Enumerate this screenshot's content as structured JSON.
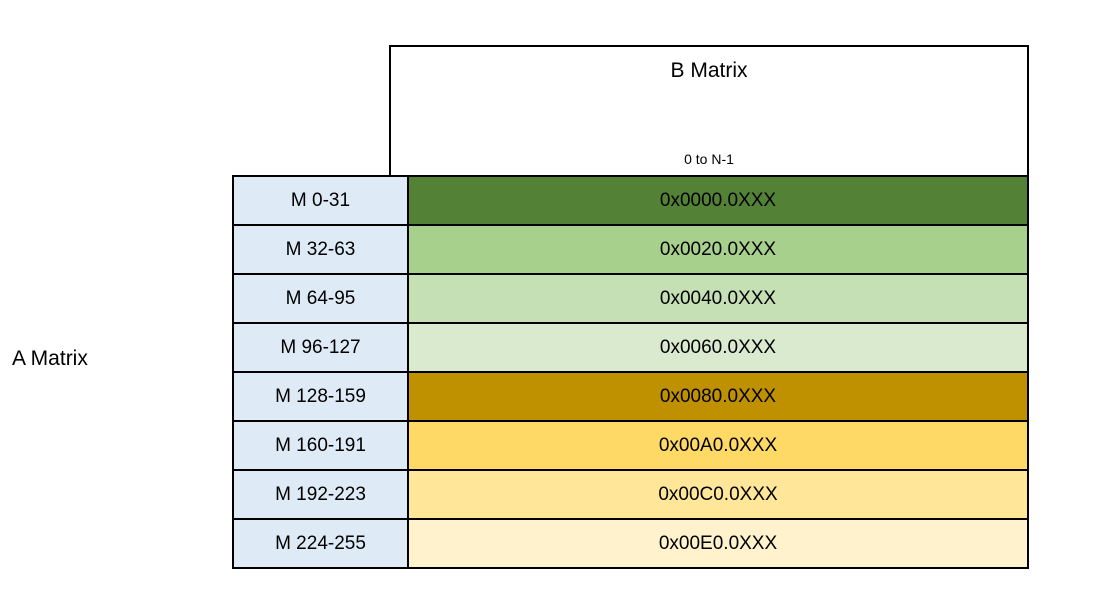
{
  "b_matrix_box": {
    "title": "B Matrix",
    "subtitle": "0 to N-1"
  },
  "a_matrix_label": "A Matrix",
  "colors": {
    "label_cell_bg": "#DEEAF6",
    "border": "#000000",
    "background": "#FFFFFF"
  },
  "table": {
    "rows": [
      {
        "label": "M 0-31",
        "address": "0x0000.0XXX",
        "color": "#538135"
      },
      {
        "label": "M 32-63",
        "address": "0x0020.0XXX",
        "color": "#A8D08D"
      },
      {
        "label": "M 64-95",
        "address": "0x0040.0XXX",
        "color": "#C5E0B4"
      },
      {
        "label": "M 96-127",
        "address": "0x0060.0XXX",
        "color": "#D9EACE"
      },
      {
        "label": "M 128-159",
        "address": "0x0080.0XXX",
        "color": "#BF9000"
      },
      {
        "label": "M 160-191",
        "address": "0x00A0.0XXX",
        "color": "#FFD966"
      },
      {
        "label": "M 192-223",
        "address": "0x00C0.0XXX",
        "color": "#FFE699"
      },
      {
        "label": "M 224-255",
        "address": "0x00E0.0XXX",
        "color": "#FFF2CC"
      }
    ]
  }
}
